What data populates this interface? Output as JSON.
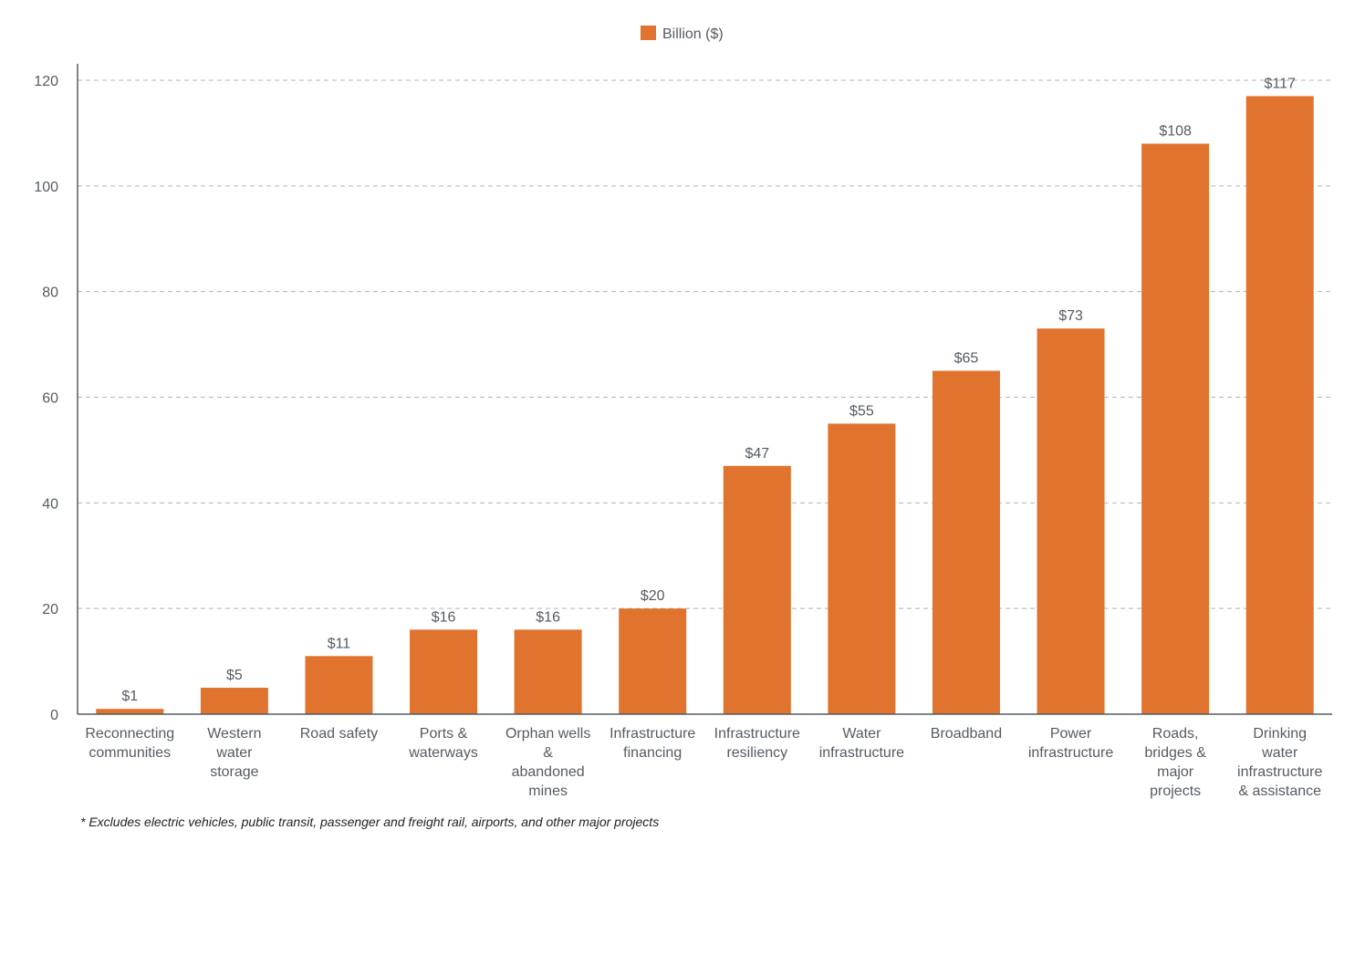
{
  "chart_data": {
    "type": "bar",
    "categories": [
      [
        "Reconnecting",
        "communities"
      ],
      [
        "Western",
        "water",
        "storage"
      ],
      [
        "Road safety"
      ],
      [
        "Ports &",
        "waterways"
      ],
      [
        "Orphan wells",
        "&",
        "abandoned",
        "mines"
      ],
      [
        "Infrastructure",
        "financing"
      ],
      [
        "Infrastructure",
        "resiliency"
      ],
      [
        "Water",
        "infrastructure"
      ],
      [
        "Broadband"
      ],
      [
        "Power",
        "infrastructure"
      ],
      [
        "Roads,",
        "bridges &",
        "major",
        "projects"
      ],
      [
        "Drinking",
        "water",
        "infrastructure",
        "& assistance"
      ]
    ],
    "series": [
      {
        "name": "Billion ($)",
        "values": [
          1,
          5,
          11,
          16,
          16,
          20,
          47,
          55,
          65,
          73,
          108,
          117
        ],
        "labels": [
          "$1",
          "$5",
          "$11",
          "$16",
          "$16",
          "$20",
          "$47",
          "$55",
          "$65",
          "$73",
          "$108",
          "$117"
        ],
        "color": "#e0732d"
      }
    ],
    "ylim": [
      0,
      120
    ],
    "yticks": [
      0,
      20,
      40,
      60,
      80,
      100,
      120
    ],
    "grid": "horizontal dashed",
    "legend_position": "top-center",
    "axis_color": "#555b63",
    "grid_color": "#b4b4b4"
  },
  "footnote": "* Excludes electric vehicles, public transit, passenger and freight rail, airports, and other major projects"
}
